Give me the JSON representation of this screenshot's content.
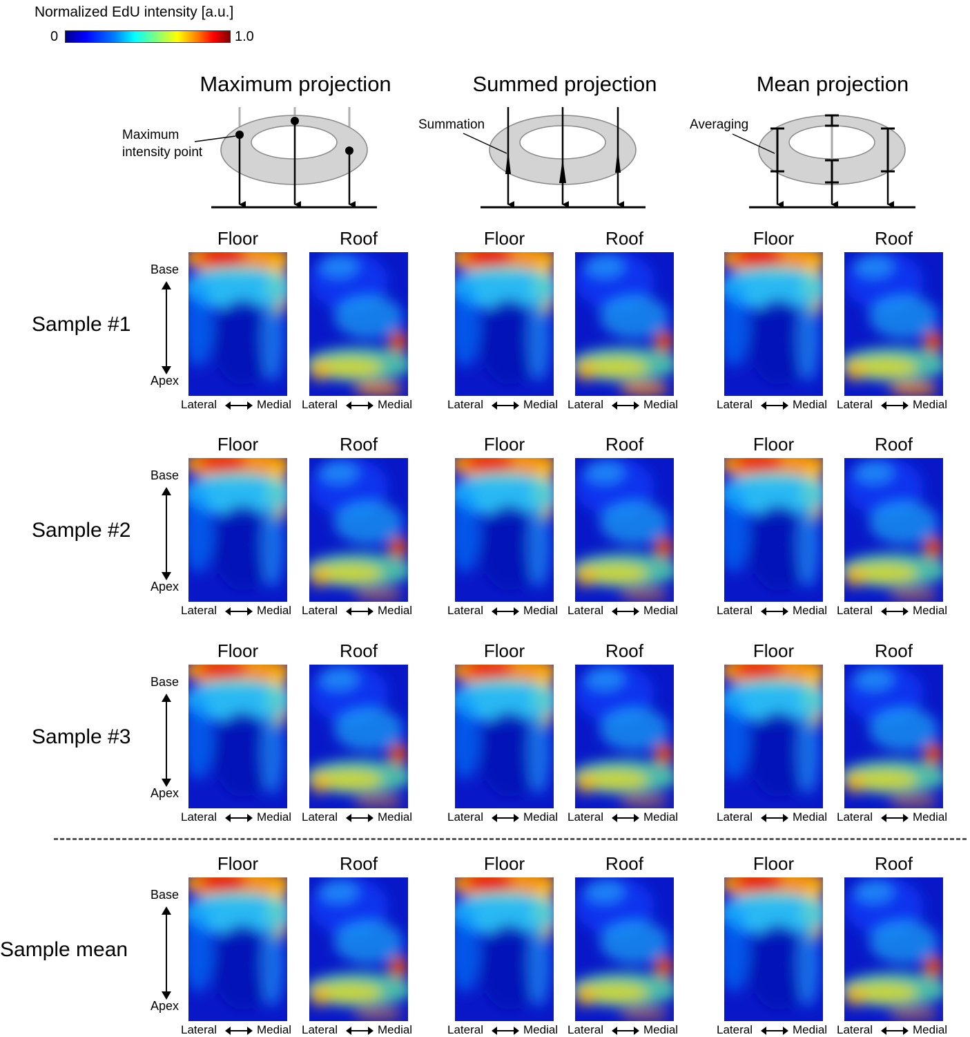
{
  "chart_data": {
    "type": "heatmap",
    "colorbar": {
      "title": "Normalized EdU intensity [a.u.]",
      "min_label": "0",
      "max_label": "1.0",
      "range": [
        0,
        1.0
      ],
      "colormap": "jet"
    },
    "projections": [
      {
        "title": "Maximum projection",
        "annotation_lines": [
          "Maximum",
          "intensity point"
        ]
      },
      {
        "title": "Summed projection",
        "annotation_lines": [
          "Summation"
        ]
      },
      {
        "title": "Mean projection",
        "annotation_lines": [
          "Averaging"
        ]
      }
    ],
    "panel_labels": [
      "Floor",
      "Roof"
    ],
    "axis_labels": {
      "base": "Base",
      "apex": "Apex",
      "lateral": "Lateral",
      "medial": "Medial"
    },
    "samples": [
      {
        "label": "Sample #1"
      },
      {
        "label": "Sample #2"
      },
      {
        "label": "Sample #3"
      },
      {
        "label": "Sample mean"
      }
    ]
  }
}
